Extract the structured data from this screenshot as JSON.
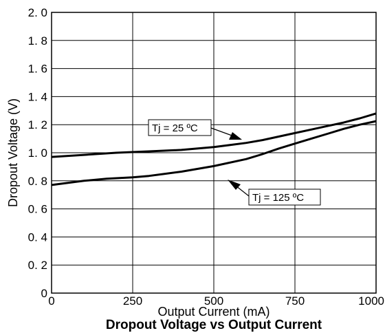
{
  "chart_data": {
    "type": "line",
    "title": "Dropout Voltage vs Output Current",
    "xlabel": "Output Current (mA)",
    "ylabel": "Dropout Voltage (V)",
    "xlim": [
      0,
      1000
    ],
    "ylim": [
      0,
      2.0
    ],
    "x_ticks": [
      "0",
      "250",
      "500",
      "750",
      "1000"
    ],
    "y_ticks": [
      "0",
      "0. 2",
      "0. 4",
      "0. 6",
      "0. 8",
      "1. 0",
      "1. 2",
      "1. 4",
      "1. 6",
      "1. 8",
      "2. 0"
    ],
    "grid": true,
    "series": [
      {
        "name": "Tj = 25 ºC",
        "x": [
          0,
          100,
          200,
          300,
          400,
          500,
          550,
          600,
          650,
          700,
          750,
          800,
          850,
          900,
          950,
          1000
        ],
        "y": [
          0.97,
          0.985,
          1.0,
          1.01,
          1.02,
          1.04,
          1.055,
          1.07,
          1.09,
          1.115,
          1.14,
          1.165,
          1.19,
          1.215,
          1.245,
          1.28
        ]
      },
      {
        "name": "Tj = 125 ºC",
        "x": [
          0,
          100,
          170,
          250,
          300,
          400,
          500,
          600,
          650,
          700,
          750,
          800,
          850,
          900,
          950,
          1000
        ],
        "y": [
          0.77,
          0.8,
          0.815,
          0.825,
          0.835,
          0.865,
          0.905,
          0.955,
          0.99,
          1.03,
          1.065,
          1.1,
          1.135,
          1.17,
          1.2,
          1.225
        ]
      }
    ]
  }
}
